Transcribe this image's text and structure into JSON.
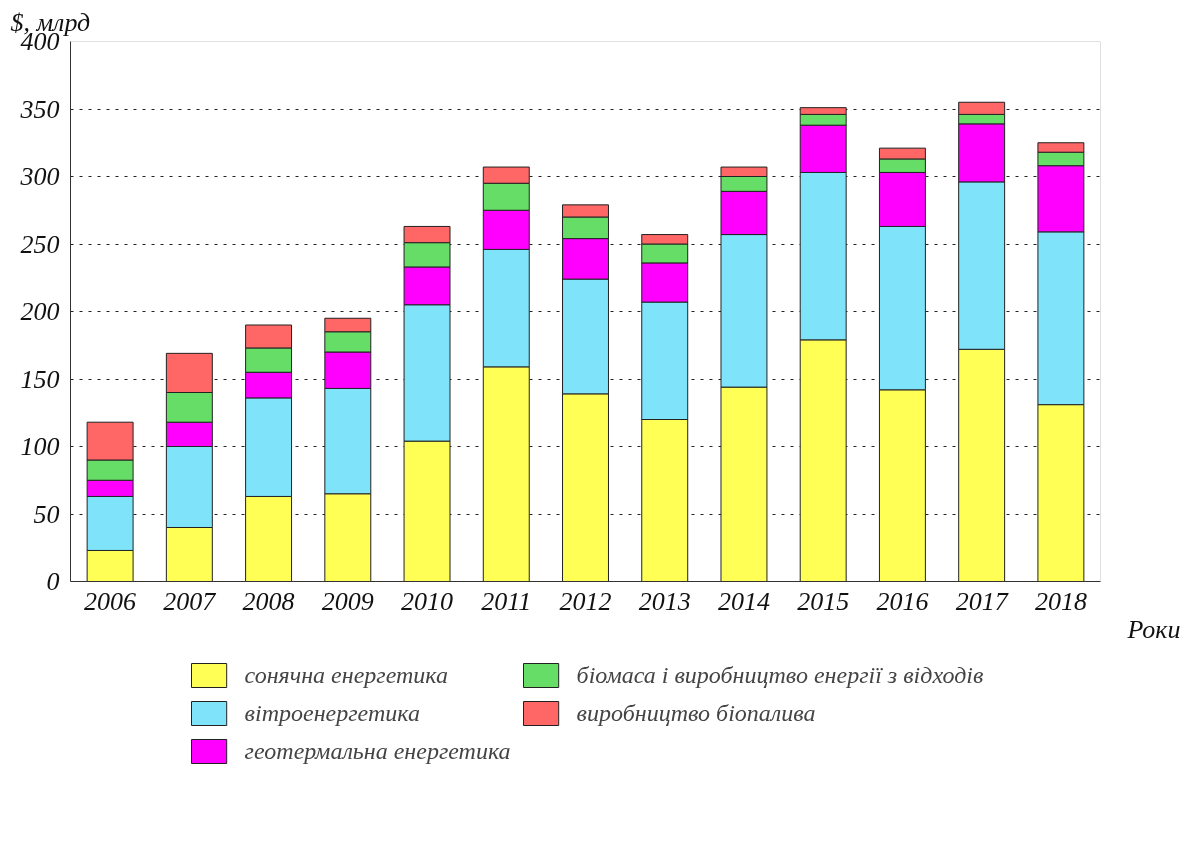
{
  "chart_data": {
    "type": "bar",
    "stacked": true,
    "ylabel": "$, млрд",
    "xlabel": "Роки",
    "categories": [
      "2006",
      "2007",
      "2008",
      "2009",
      "2010",
      "2011",
      "2012",
      "2013",
      "2014",
      "2015",
      "2016",
      "2017",
      "2018"
    ],
    "series": [
      {
        "name": "сонячна енергетика",
        "color": "#ffff55",
        "values": [
          23,
          40,
          63,
          65,
          104,
          159,
          139,
          120,
          144,
          179,
          142,
          172,
          131
        ]
      },
      {
        "name": "вітроенергетика",
        "color": "#7fe3fa",
        "values": [
          40,
          60,
          73,
          78,
          101,
          87,
          85,
          87,
          113,
          124,
          121,
          124,
          128
        ]
      },
      {
        "name": "геотермальна енергетика",
        "color": "#ff00ff",
        "values": [
          12,
          18,
          19,
          27,
          28,
          29,
          30,
          29,
          32,
          35,
          40,
          43,
          49
        ]
      },
      {
        "name": "біомаса і виробництво енергії з відходів",
        "color": "#66dd66",
        "values": [
          15,
          22,
          18,
          15,
          18,
          20,
          16,
          14,
          11,
          8,
          10,
          7,
          10
        ]
      },
      {
        "name": "виробництво біопалива",
        "color": "#ff6666",
        "values": [
          28,
          29,
          17,
          10,
          12,
          12,
          9,
          7,
          7,
          5,
          8,
          9,
          7
        ]
      }
    ],
    "ylim": [
      0,
      400
    ],
    "yticks": [
      0,
      50,
      100,
      150,
      200,
      250,
      300,
      350,
      400
    ],
    "grid": "y",
    "legend": "bottom"
  }
}
